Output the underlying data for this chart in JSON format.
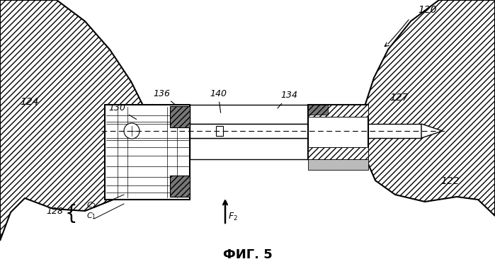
{
  "title": "ФИГ. 5",
  "bg_color": "#ffffff",
  "line_color": "#000000",
  "fig_width": 6.99,
  "fig_height": 3.73,
  "dpi": 100
}
